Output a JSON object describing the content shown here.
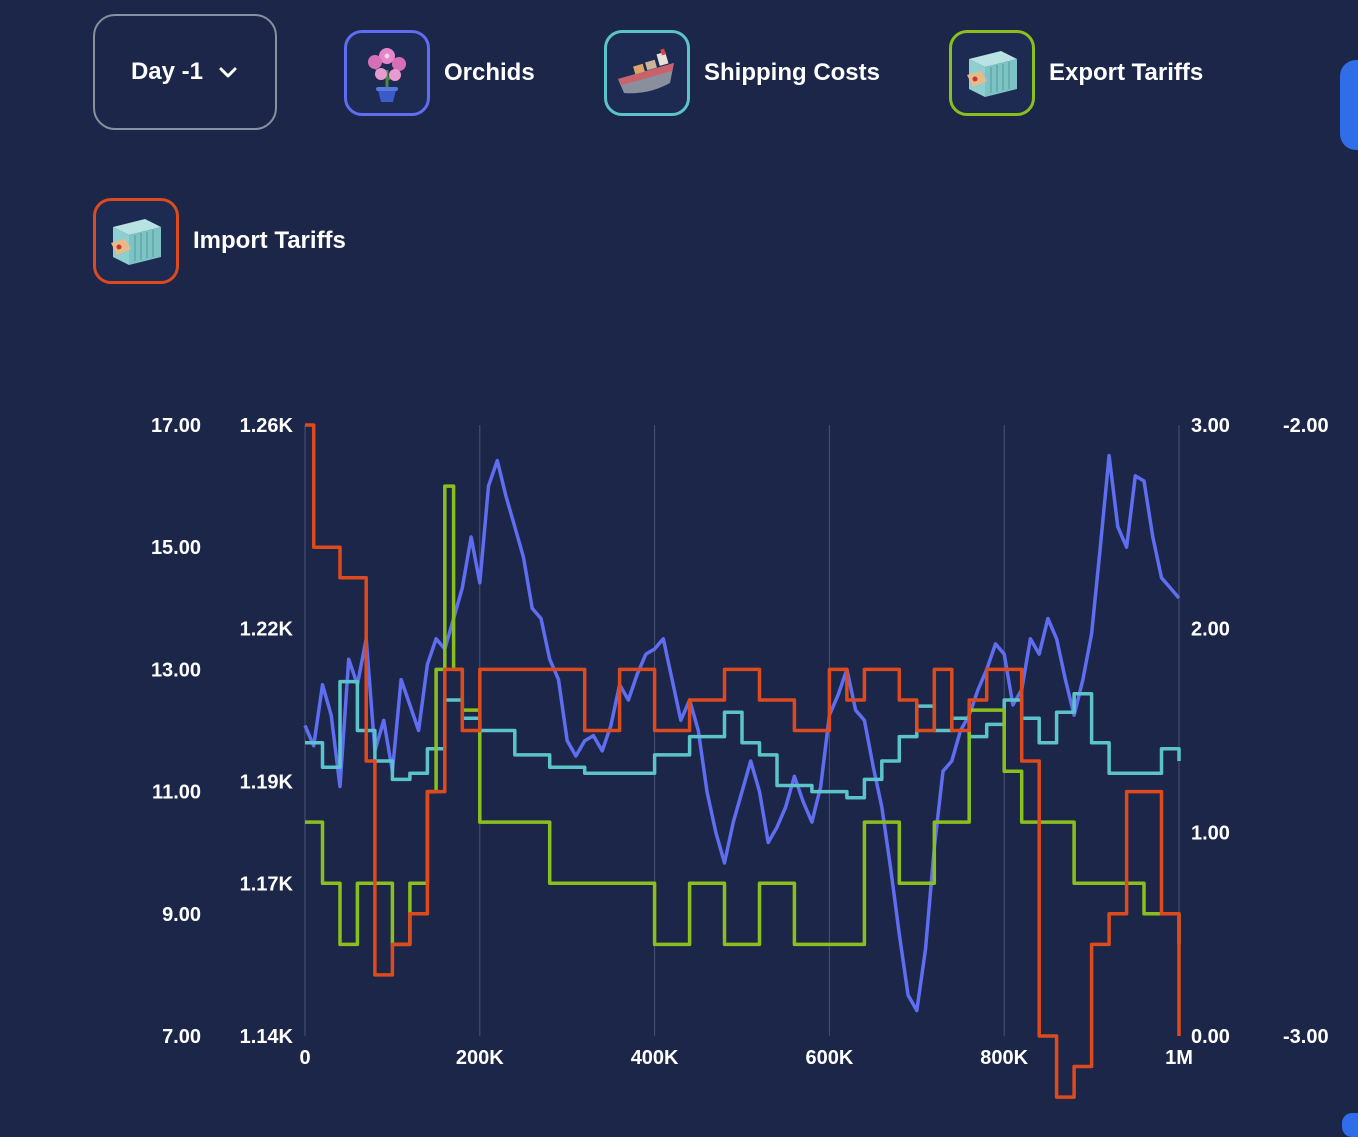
{
  "day_selector": {
    "label": "Day -1"
  },
  "products": [
    {
      "label": "Orchids",
      "icon": "orchid-icon",
      "color": "#5f6df0"
    },
    {
      "label": "Shipping Costs",
      "icon": "ship-icon",
      "color": "#5bc3c9"
    },
    {
      "label": "Export Tariffs",
      "icon": "container-icon",
      "color": "#8bbf1e"
    },
    {
      "label": "Import Tariffs",
      "icon": "container-icon",
      "color": "#dc4a1e"
    }
  ],
  "chart_data": {
    "type": "line",
    "x_range": [
      0,
      1000000
    ],
    "x_ticks": [
      0,
      200000,
      400000,
      600000,
      800000,
      1000000
    ],
    "x_tick_labels": [
      "0",
      "200K",
      "400K",
      "600K",
      "800K",
      "1M"
    ],
    "axes": [
      {
        "id": "orchids",
        "side": "left-inner",
        "range": [
          1140,
          1260
        ],
        "tick_values": [
          1140,
          1170,
          1190,
          1220,
          1260
        ],
        "tick_labels": [
          "1.14K",
          "1.17K",
          "1.19K",
          "1.22K",
          "1.26K"
        ]
      },
      {
        "id": "shipping",
        "side": "left-outer",
        "range": [
          7,
          17
        ],
        "tick_values": [
          7,
          9,
          11,
          13,
          15,
          17
        ],
        "tick_labels": [
          "7.00",
          "9.00",
          "11.00",
          "13.00",
          "15.00",
          "17.00"
        ]
      },
      {
        "id": "export",
        "side": "right-inner",
        "range": [
          0,
          3
        ],
        "tick_values": [
          0,
          1,
          2,
          3
        ],
        "tick_labels": [
          "0.00",
          "1.00",
          "2.00",
          "3.00"
        ]
      },
      {
        "id": "import",
        "side": "right-outer",
        "range": [
          -3,
          -2
        ],
        "tick_values": [
          -3,
          -2
        ],
        "tick_labels": [
          "-3.00",
          "-2.00"
        ]
      }
    ],
    "series": [
      {
        "name": "Orchids",
        "axis": "orchids",
        "color": "#5f6df0",
        "x": [
          0,
          10000,
          20000,
          30000,
          40000,
          50000,
          60000,
          70000,
          80000,
          90000,
          100000,
          110000,
          120000,
          130000,
          140000,
          150000,
          160000,
          170000,
          180000,
          190000,
          200000,
          210000,
          220000,
          230000,
          240000,
          250000,
          260000,
          270000,
          280000,
          290000,
          300000,
          310000,
          320000,
          330000,
          340000,
          350000,
          360000,
          370000,
          380000,
          390000,
          400000,
          410000,
          420000,
          430000,
          440000,
          450000,
          460000,
          470000,
          480000,
          490000,
          500000,
          510000,
          520000,
          530000,
          540000,
          550000,
          560000,
          570000,
          580000,
          590000,
          600000,
          610000,
          620000,
          630000,
          640000,
          650000,
          660000,
          670000,
          680000,
          690000,
          700000,
          710000,
          720000,
          730000,
          740000,
          750000,
          760000,
          770000,
          780000,
          790000,
          800000,
          810000,
          820000,
          830000,
          840000,
          850000,
          860000,
          870000,
          880000,
          890000,
          900000,
          910000,
          920000,
          930000,
          940000,
          950000,
          960000,
          970000,
          980000,
          990000,
          1000000
        ],
        "values": [
          1201,
          1197,
          1209,
          1203,
          1189,
          1214,
          1209,
          1218,
          1196,
          1202,
          1192,
          1210,
          1205,
          1200,
          1213,
          1218,
          1216,
          1222,
          1228,
          1238,
          1229,
          1248,
          1253,
          1246,
          1240,
          1234,
          1224,
          1222,
          1214,
          1210,
          1198,
          1195,
          1198,
          1199,
          1196,
          1201,
          1209,
          1206,
          1211,
          1215,
          1216,
          1218,
          1210,
          1202,
          1206,
          1200,
          1188,
          1180,
          1174,
          1182,
          1188,
          1194,
          1188,
          1178,
          1181,
          1185,
          1191,
          1186,
          1182,
          1189,
          1203,
          1207,
          1212,
          1204,
          1202,
          1193,
          1185,
          1173,
          1160,
          1148,
          1145,
          1157,
          1177,
          1192,
          1194,
          1200,
          1203,
          1208,
          1212,
          1217,
          1215,
          1205,
          1208,
          1218,
          1215,
          1222,
          1218,
          1210,
          1203,
          1210,
          1219,
          1236,
          1254,
          1240,
          1236,
          1250,
          1249,
          1238,
          1230,
          1228,
          1226
        ]
      },
      {
        "name": "Shipping Costs",
        "axis": "shipping",
        "color": "#5bc3c9",
        "x": [
          0,
          20000,
          40000,
          60000,
          80000,
          100000,
          120000,
          140000,
          160000,
          180000,
          200000,
          240000,
          280000,
          320000,
          360000,
          400000,
          440000,
          480000,
          500000,
          520000,
          540000,
          580000,
          620000,
          640000,
          660000,
          680000,
          700000,
          720000,
          740000,
          760000,
          780000,
          800000,
          820000,
          840000,
          860000,
          880000,
          900000,
          920000,
          940000,
          960000,
          980000,
          1000000
        ],
        "values": [
          11.8,
          11.4,
          12.8,
          12.0,
          11.5,
          11.2,
          11.3,
          11.7,
          12.5,
          12.2,
          12.0,
          11.6,
          11.4,
          11.3,
          11.3,
          11.6,
          11.9,
          12.3,
          11.8,
          11.6,
          11.1,
          11.0,
          10.9,
          11.2,
          11.5,
          11.9,
          12.4,
          12.0,
          12.2,
          11.9,
          12.1,
          12.5,
          12.2,
          11.8,
          12.3,
          12.6,
          11.8,
          11.3,
          11.3,
          11.3,
          11.7,
          11.5
        ]
      },
      {
        "name": "Export Tariffs",
        "axis": "export",
        "color": "#8bbf1e",
        "x": [
          0,
          20000,
          40000,
          60000,
          80000,
          100000,
          120000,
          140000,
          150000,
          160000,
          170000,
          180000,
          200000,
          240000,
          280000,
          320000,
          360000,
          400000,
          440000,
          480000,
          520000,
          560000,
          600000,
          640000,
          680000,
          720000,
          760000,
          800000,
          820000,
          840000,
          880000,
          920000,
          960000,
          1000000
        ],
        "values": [
          1.05,
          0.75,
          0.45,
          0.75,
          0.75,
          0.45,
          0.75,
          1.2,
          1.8,
          2.7,
          1.8,
          1.6,
          1.05,
          1.05,
          0.75,
          0.75,
          0.75,
          0.45,
          0.75,
          0.45,
          0.75,
          0.45,
          0.45,
          1.05,
          0.75,
          1.05,
          1.6,
          1.3,
          1.05,
          1.05,
          0.75,
          0.75,
          0.6,
          0.45
        ]
      },
      {
        "name": "Import Tariffs",
        "axis": "import",
        "color": "#dc4a1e",
        "x": [
          0,
          10000,
          40000,
          70000,
          80000,
          100000,
          120000,
          140000,
          160000,
          180000,
          200000,
          240000,
          280000,
          320000,
          360000,
          400000,
          440000,
          480000,
          520000,
          560000,
          600000,
          620000,
          640000,
          660000,
          680000,
          700000,
          720000,
          740000,
          760000,
          780000,
          800000,
          820000,
          840000,
          860000,
          880000,
          900000,
          920000,
          940000,
          960000,
          980000,
          1000000
        ],
        "values": [
          -2.0,
          -2.2,
          -2.25,
          -2.55,
          -2.9,
          -2.85,
          -2.8,
          -2.6,
          -2.4,
          -2.5,
          -2.4,
          -2.4,
          -2.4,
          -2.5,
          -2.4,
          -2.5,
          -2.45,
          -2.4,
          -2.45,
          -2.5,
          -2.4,
          -2.45,
          -2.4,
          -2.4,
          -2.45,
          -2.5,
          -2.4,
          -2.5,
          -2.45,
          -2.4,
          -2.4,
          -2.55,
          -3.0,
          -3.1,
          -3.05,
          -2.85,
          -2.8,
          -2.6,
          -2.6,
          -2.8,
          -3.0
        ]
      }
    ]
  }
}
